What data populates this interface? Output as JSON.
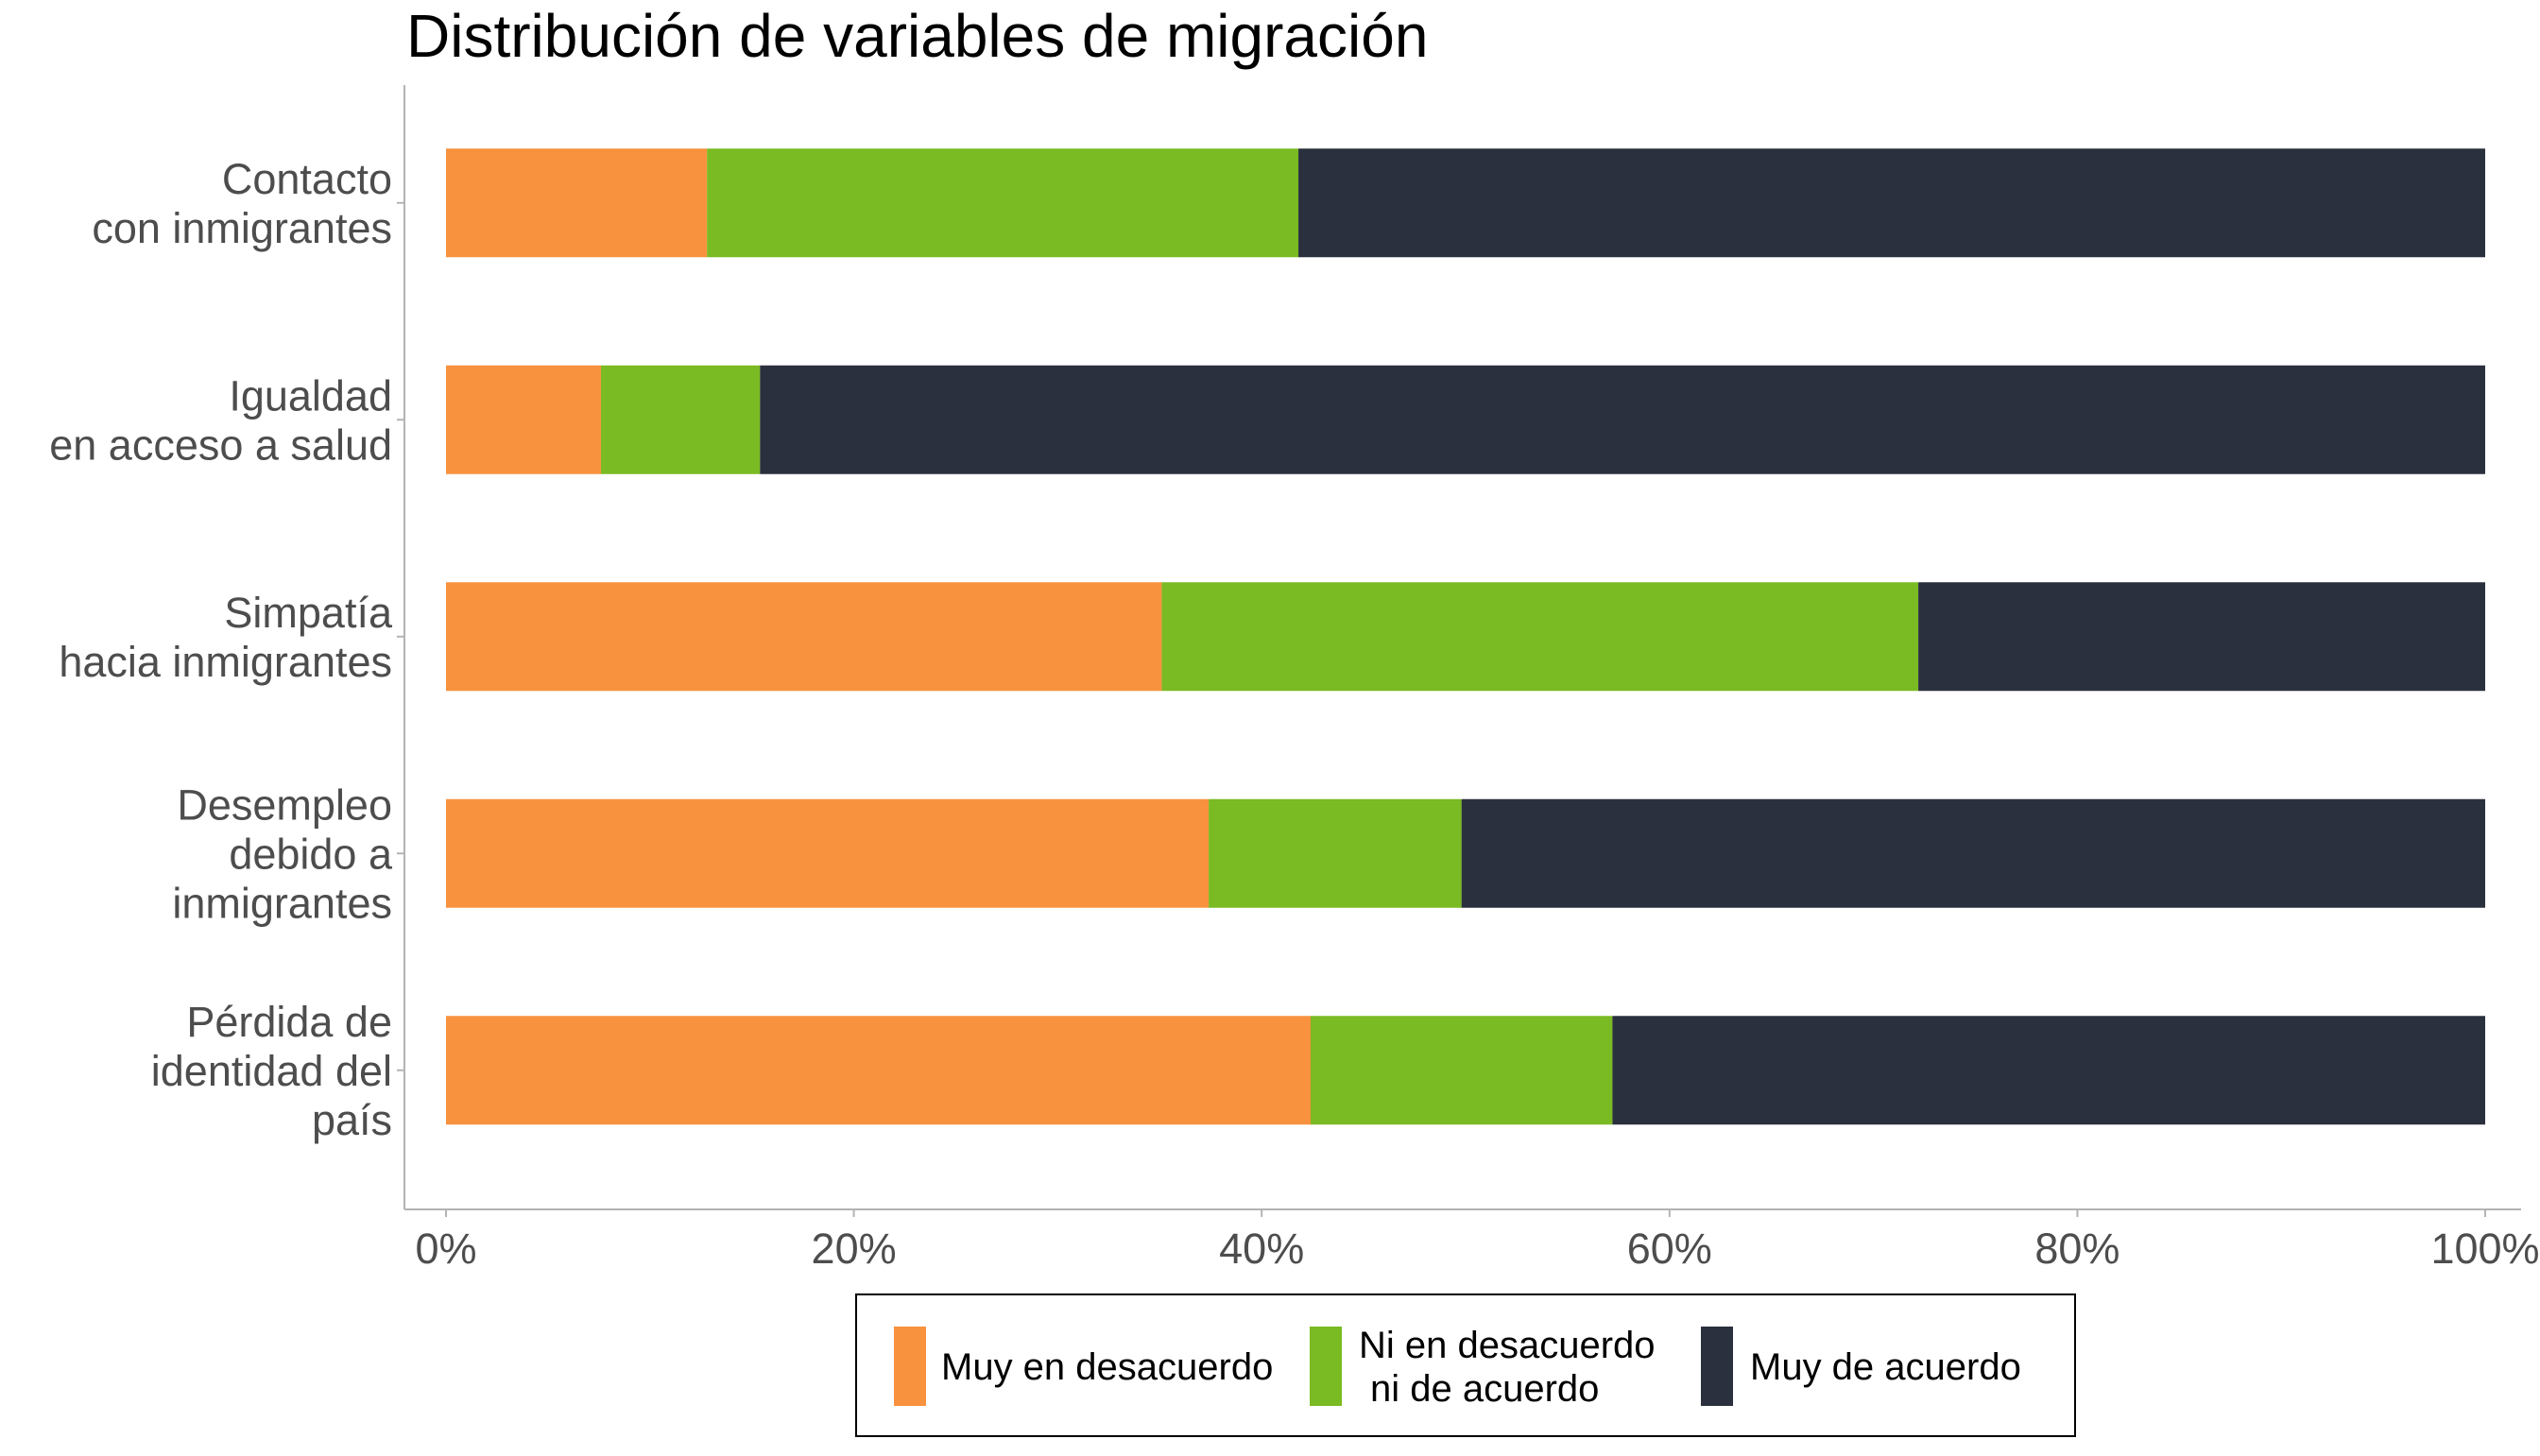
{
  "chart_data": {
    "type": "bar",
    "orientation": "horizontal",
    "stacked": true,
    "title": "Distribución de variables de migración",
    "xlabel": "",
    "ylabel": "",
    "xlim": [
      0,
      100
    ],
    "x_ticks": [
      "0%",
      "20%",
      "40%",
      "60%",
      "80%",
      "100%"
    ],
    "x_tick_values": [
      0,
      20,
      40,
      60,
      80,
      100
    ],
    "grid": false,
    "legend_position": "bottom",
    "categories": [
      [
        "Contacto",
        "con inmigrantes"
      ],
      [
        "Igualdad",
        "en acceso a salud"
      ],
      [
        "Simpatía",
        "hacia inmigrantes"
      ],
      [
        "Desempleo",
        "debido a",
        "inmigrantes"
      ],
      [
        "Pérdida de",
        "identidad del",
        "país"
      ]
    ],
    "series": [
      {
        "name": [
          "Muy en desacuerdo"
        ],
        "color": "#f8923f",
        "values": [
          12.8,
          7.6,
          35.1,
          37.4,
          42.4
        ]
      },
      {
        "name": [
          "Ni en desacuerdo",
          "ni de acuerdo"
        ],
        "color": "#7aba22",
        "values": [
          29.0,
          7.8,
          37.1,
          12.4,
          14.8
        ]
      },
      {
        "name": [
          "Muy de acuerdo"
        ],
        "color": "#2b303e",
        "values": [
          58.2,
          84.6,
          27.8,
          50.2,
          42.8
        ]
      }
    ]
  }
}
